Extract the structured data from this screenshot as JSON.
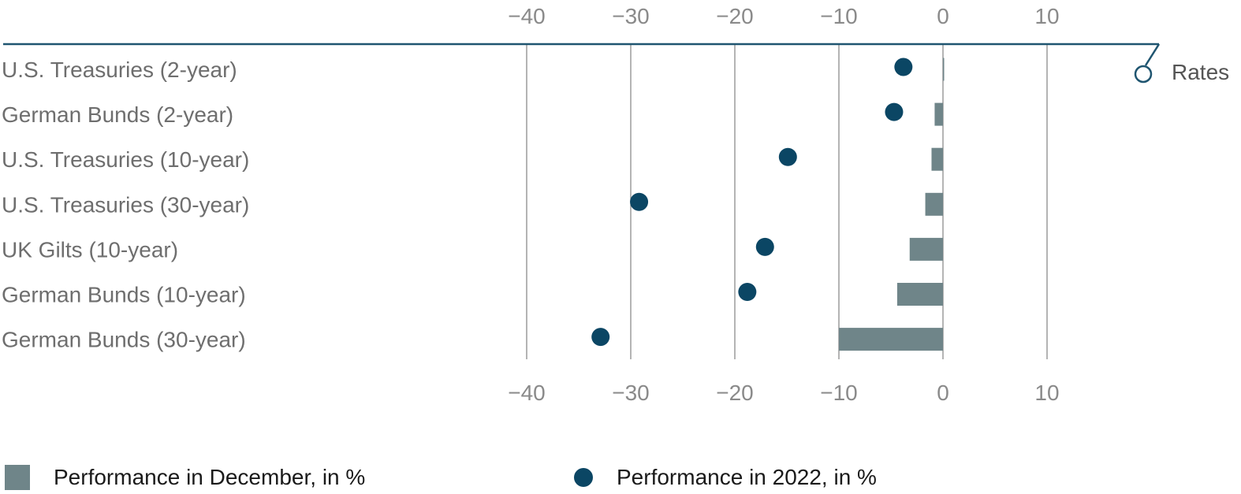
{
  "chart_data": {
    "type": "bar",
    "categories": [
      "U.S. Treasuries (2-year)",
      "German Bunds (2-year)",
      "U.S. Treasuries (10-year)",
      "U.S. Treasuries (30-year)",
      "UK Gilts (10-year)",
      "German Bunds (10-year)",
      "German Bunds (30-year)"
    ],
    "series": [
      {
        "name": "Performance in December, in %",
        "kind": "bar",
        "values": [
          0.1,
          -0.8,
          -1.1,
          -1.7,
          -3.2,
          -4.4,
          -10.0
        ]
      },
      {
        "name": "Performance in 2022, in %",
        "kind": "dot",
        "values": [
          -3.8,
          -4.7,
          -14.9,
          -29.2,
          -17.1,
          -18.8,
          -32.9
        ]
      }
    ],
    "xlim": [
      -40,
      10
    ],
    "xticks": [
      "−40",
      "−30",
      "−20",
      "−10",
      "0",
      "10"
    ],
    "tickValues": [
      -40,
      -30,
      -20,
      -10,
      0,
      10
    ],
    "grid": true,
    "legend_position": "bottom",
    "section_label": "Rates",
    "colors": {
      "bar": "#6f8589",
      "dot": "#0b4664",
      "axis": "#1f5570",
      "grid": "#8c8c8c"
    }
  },
  "legend": {
    "bar_label": "Performance in December, in %",
    "dot_label": "Performance in 2022, in %"
  }
}
